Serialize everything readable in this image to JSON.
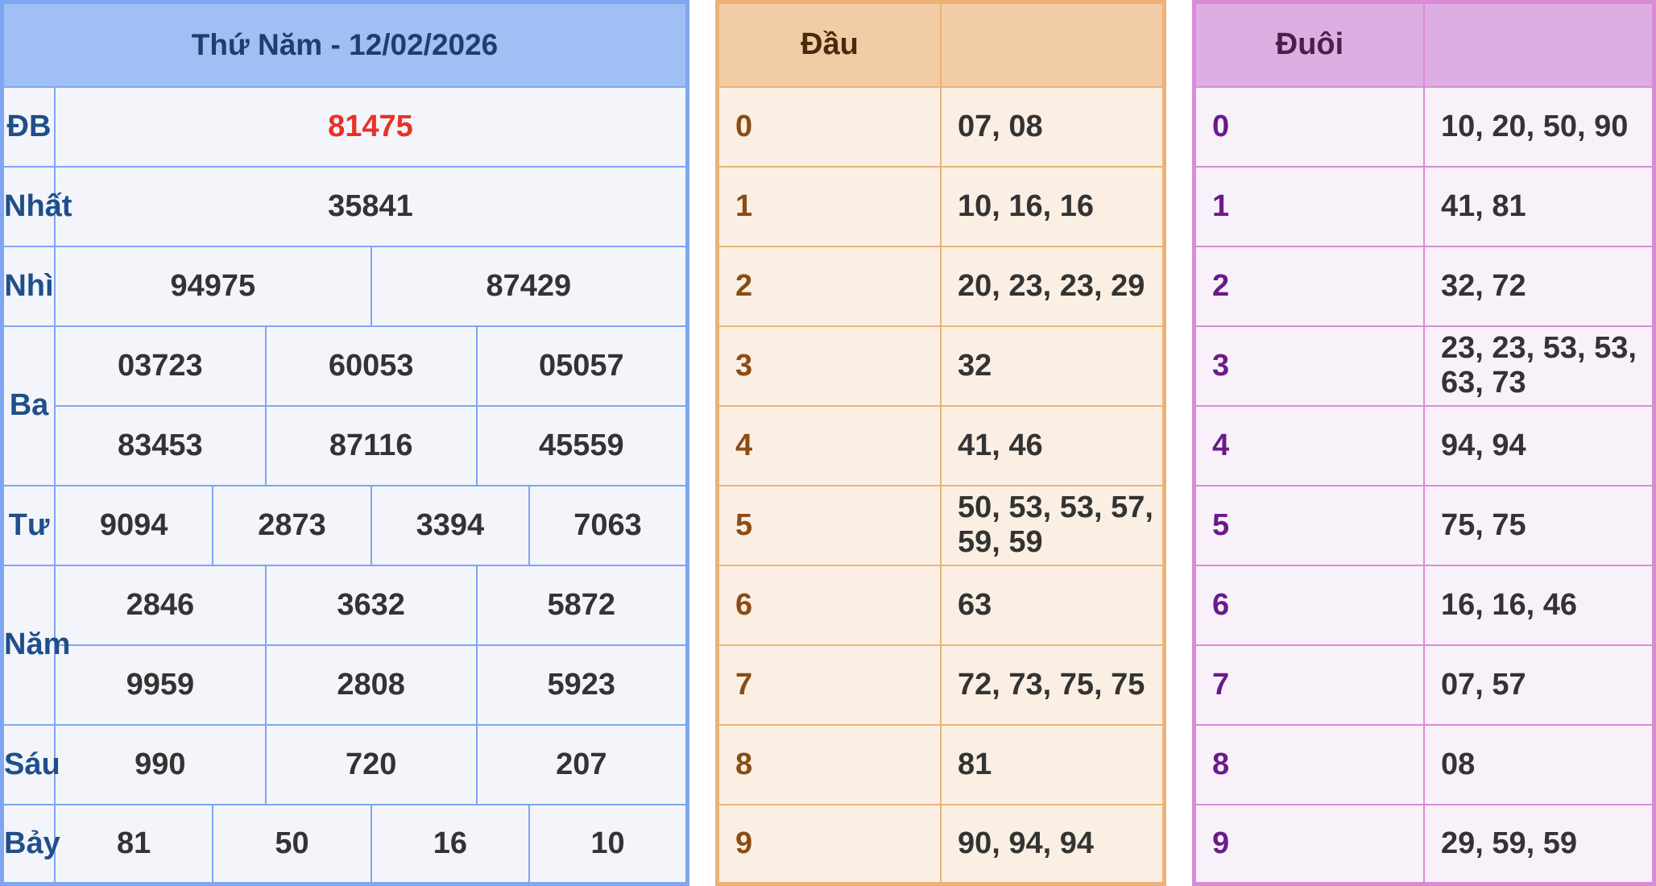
{
  "results": {
    "title": "Thứ Năm - 12/02/2026",
    "db": {
      "label": "ĐB",
      "values": [
        "81475"
      ]
    },
    "nhat": {
      "label": "Nhất",
      "values": [
        "35841"
      ]
    },
    "nhi": {
      "label": "Nhì",
      "values": [
        "94975",
        "87429"
      ]
    },
    "ba": {
      "label": "Ba",
      "values": [
        "03723",
        "60053",
        "05057",
        "83453",
        "87116",
        "45559"
      ]
    },
    "tu": {
      "label": "Tư",
      "values": [
        "9094",
        "2873",
        "3394",
        "7063"
      ]
    },
    "nam": {
      "label": "Năm",
      "values": [
        "2846",
        "3632",
        "5872",
        "9959",
        "2808",
        "5923"
      ]
    },
    "sau": {
      "label": "Sáu",
      "values": [
        "990",
        "720",
        "207"
      ]
    },
    "bay": {
      "label": "Bảy",
      "values": [
        "81",
        "50",
        "16",
        "10"
      ]
    }
  },
  "dau": {
    "header": "Đầu",
    "rows": [
      {
        "k": "0",
        "v": "07, 08"
      },
      {
        "k": "1",
        "v": "10, 16, 16"
      },
      {
        "k": "2",
        "v": "20, 23, 23, 29"
      },
      {
        "k": "3",
        "v": "32"
      },
      {
        "k": "4",
        "v": "41, 46"
      },
      {
        "k": "5",
        "v": "50, 53, 53, 57, 59, 59"
      },
      {
        "k": "6",
        "v": "63"
      },
      {
        "k": "7",
        "v": "72, 73, 75, 75"
      },
      {
        "k": "8",
        "v": "81"
      },
      {
        "k": "9",
        "v": "90, 94, 94"
      }
    ]
  },
  "duoi": {
    "header": "Đuôi",
    "rows": [
      {
        "k": "0",
        "v": "10, 20, 50, 90"
      },
      {
        "k": "1",
        "v": "41, 81"
      },
      {
        "k": "2",
        "v": "32, 72"
      },
      {
        "k": "3",
        "v": "23, 23, 53, 53, 63, 73"
      },
      {
        "k": "4",
        "v": "94, 94"
      },
      {
        "k": "5",
        "v": "75, 75"
      },
      {
        "k": "6",
        "v": "16, 16, 46"
      },
      {
        "k": "7",
        "v": "07, 57"
      },
      {
        "k": "8",
        "v": "08"
      },
      {
        "k": "9",
        "v": "29, 59, 59"
      }
    ]
  }
}
